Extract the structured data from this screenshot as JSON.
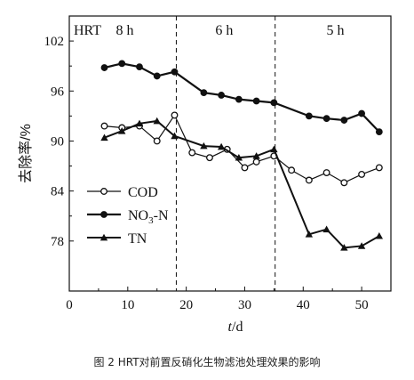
{
  "caption": "图 2 HRT对前置反硝化生物滤池处理效果的影响",
  "chart_data": {
    "type": "line",
    "xlabel_italic": "t",
    "xlabel_unit": "/d",
    "ylabel": "去除率/%",
    "xlim": [
      0,
      55
    ],
    "ylim": [
      72,
      105
    ],
    "xticks": [
      0,
      10,
      20,
      30,
      40,
      50
    ],
    "yticks": [
      78,
      84,
      90,
      96,
      102
    ],
    "phase_lines": [
      18.3,
      35.2
    ],
    "hrt_label": "HRT",
    "phase_labels": [
      {
        "text": "8 h",
        "x": 9.5
      },
      {
        "text": "6 h",
        "x": 26.5
      },
      {
        "text": "5 h",
        "x": 45.5
      }
    ],
    "legend": {
      "position": "left",
      "entries": [
        "COD",
        "NO3-N",
        "TN"
      ]
    },
    "series": [
      {
        "name": "COD",
        "marker": "open-circle",
        "x": [
          6,
          9,
          12,
          15,
          18,
          21,
          24,
          27,
          30,
          32,
          35,
          38,
          41,
          44,
          47,
          50,
          53
        ],
        "y": [
          91.8,
          91.6,
          91.8,
          90,
          93.1,
          88.6,
          88,
          89,
          86.8,
          87.5,
          88.2,
          86.5,
          85.3,
          86.2,
          85,
          86,
          86.8
        ]
      },
      {
        "name": "NO3-N",
        "marker": "filled-circle",
        "x": [
          6,
          9,
          12,
          15,
          18,
          23,
          26,
          29,
          32,
          35,
          41,
          44,
          47,
          50,
          53
        ],
        "y": [
          98.8,
          99.3,
          98.9,
          97.8,
          98.3,
          95.8,
          95.5,
          95,
          94.8,
          94.6,
          93,
          92.7,
          92.5,
          93.3,
          91.1
        ]
      },
      {
        "name": "TN",
        "marker": "filled-triangle",
        "x": [
          6,
          9,
          12,
          15,
          18,
          23,
          26,
          29,
          32,
          35,
          41,
          44,
          47,
          50,
          53
        ],
        "y": [
          90.4,
          91.2,
          92.1,
          92.4,
          90.6,
          89.4,
          89.3,
          88,
          88.2,
          89,
          78.8,
          79.4,
          77.2,
          77.4,
          78.6
        ]
      }
    ]
  }
}
